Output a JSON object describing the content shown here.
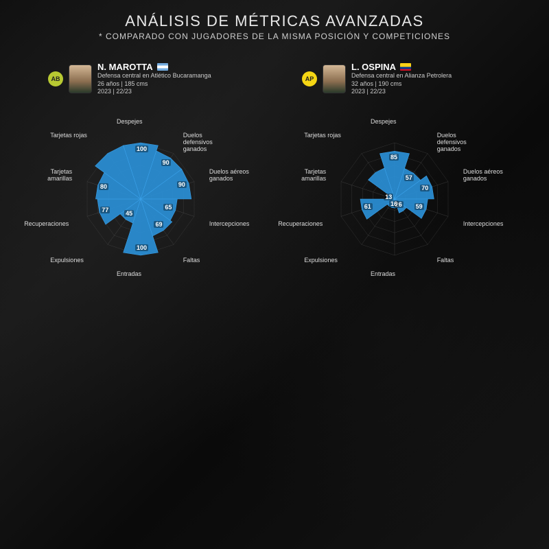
{
  "header": {
    "title": "ANÁLISIS DE MÉTRICAS AVANZADAS",
    "subtitle": "* COMPARADO CON JUGADORES DE LA MISMA POSICIÓN Y COMPETICIONES"
  },
  "chart": {
    "type": "radar",
    "max_radius": 82,
    "grid_rings": [
      20,
      40,
      60,
      80,
      100
    ],
    "fill_color": "#2a8fd6",
    "fill_opacity": 0.92,
    "stroke_color": "#3aa0e8",
    "grid_color": "#555555",
    "spoke_color": "#666666",
    "bg_color": "transparent",
    "label_color": "#dddddd",
    "label_fontsize": 9,
    "value_fontsize": 9,
    "metrics": [
      "Despejes",
      "Duelos defensivos ganados",
      "Duelos aéreos ganados",
      "Intercepciones",
      "Faltas",
      "Entradas",
      "Expulsiones",
      "Recuperaciones",
      "Tarjetas amarillas",
      "Tarjetas rojas"
    ]
  },
  "players": [
    {
      "name": "N. MAROTTA",
      "flag_colors": [
        "#74acdf",
        "#ffffff",
        "#74acdf"
      ],
      "badge_bg": "#b8c932",
      "badge_text": "AB",
      "position_line": "Defensa central en Atlético Bucaramanga",
      "age_line": "26 años | 185 cms",
      "season_line": "2023 | 22/23",
      "values": [
        100,
        90,
        90,
        65,
        69,
        100,
        45,
        77,
        80,
        100
      ],
      "show_values": [
        100,
        90,
        90,
        65,
        69,
        100,
        45,
        77,
        80
      ]
    },
    {
      "name": "L. OSPINA",
      "flag_colors": [
        "#fcd116",
        "#003893",
        "#ce1126"
      ],
      "badge_bg": "#f5d614",
      "badge_text": "AP",
      "position_line": "Defensa central en Alianza Petrolera",
      "age_line": "32 años | 190 cms",
      "season_line": "2023 | 22/23",
      "values": [
        85,
        57,
        70,
        59,
        26,
        16,
        16,
        61,
        13,
        58
      ],
      "show_values": [
        85,
        57,
        70,
        59,
        26,
        16,
        null,
        61,
        13
      ]
    }
  ]
}
